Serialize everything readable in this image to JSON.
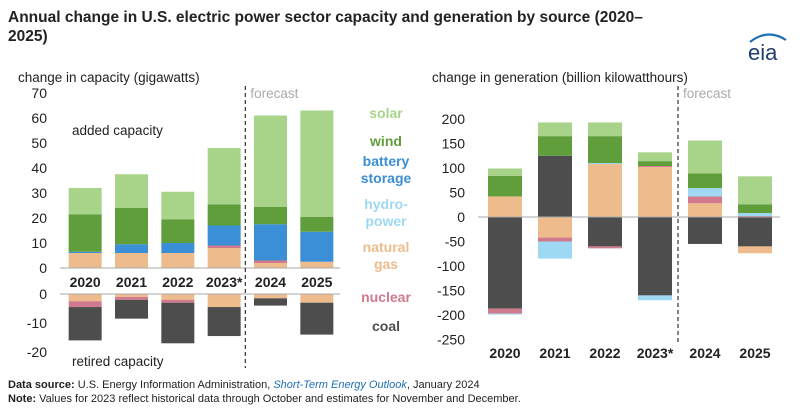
{
  "title": "Annual change in U.S. electric power sector capacity and generation by source (2020–2025)",
  "logo_text": "eia",
  "footer": {
    "source_label": "Data source:",
    "source_text": " U.S. Energy Information Administration, ",
    "source_link": "Short-Term Energy Outlook",
    "source_tail": ", January 2024",
    "note_label": "Note:",
    "note_text": " Values for 2023 reflect historical data through October and estimates for November and December."
  },
  "colors": {
    "solar": "#a8d48a",
    "wind": "#5f9e3a",
    "battery storage": "#3a8fd6",
    "hydro-power": "#9fd8f3",
    "natural gas": "#eebc8c",
    "nuclear": "#d17a8e",
    "coal": "#4d4d4d"
  },
  "legend": [
    {
      "key": "solar",
      "lines": [
        "solar"
      ]
    },
    {
      "key": "wind",
      "lines": [
        "wind"
      ]
    },
    {
      "key": "battery storage",
      "lines": [
        "battery",
        "storage"
      ]
    },
    {
      "key": "hydro-power",
      "lines": [
        "hydro-",
        "power"
      ]
    },
    {
      "key": "natural gas",
      "lines": [
        "natural",
        "gas"
      ]
    },
    {
      "key": "nuclear",
      "lines": [
        "nuclear"
      ]
    },
    {
      "key": "coal",
      "lines": [
        "coal"
      ]
    }
  ],
  "chart_data": [
    {
      "type": "bar",
      "stacked": true,
      "ylabel": "change in capacity (gigawatts)",
      "forecast_label": "forecast",
      "forecast_from": "2024",
      "annotations": [
        "added capacity",
        "retired capacity"
      ],
      "categories": [
        "2020",
        "2021",
        "2022",
        "2023*",
        "2024",
        "2025"
      ],
      "added": {
        "ylim": [
          0,
          70
        ],
        "yticks": [
          0,
          10,
          20,
          30,
          40,
          50,
          60,
          70
        ],
        "series": [
          {
            "name": "natural gas",
            "values": [
              6,
              6,
              6,
              8,
              2,
              2.5
            ]
          },
          {
            "name": "nuclear",
            "values": [
              0,
              0,
              0,
              1,
              1,
              0
            ]
          },
          {
            "name": "hydro-power",
            "values": [
              0,
              0,
              0,
              0,
              0,
              0
            ]
          },
          {
            "name": "battery storage",
            "values": [
              0.5,
              3.5,
              4,
              8,
              14.5,
              12
            ]
          },
          {
            "name": "wind",
            "values": [
              15,
              14.5,
              9.5,
              8.5,
              7,
              6
            ]
          },
          {
            "name": "solar",
            "values": [
              10.5,
              13.5,
              11,
              22.5,
              36.5,
              42.5
            ]
          }
        ]
      },
      "retired": {
        "ylim": [
          -20,
          0
        ],
        "yticks": [
          0,
          -10,
          -20
        ],
        "series": [
          {
            "name": "natural gas",
            "values": [
              -2.5,
              -1,
              -2,
              -4.5,
              -1.5,
              -3
            ]
          },
          {
            "name": "nuclear",
            "values": [
              -2,
              -1,
              -1,
              0,
              0,
              0
            ]
          },
          {
            "name": "coal",
            "values": [
              -11.5,
              -6.5,
              -14,
              -10,
              -2.5,
              -11
            ]
          }
        ]
      }
    },
    {
      "type": "bar",
      "stacked": true,
      "ylabel": "change in generation (billion kilowatthours)",
      "forecast_label": "forecast",
      "forecast_from": "2024",
      "categories": [
        "2020",
        "2021",
        "2022",
        "2023*",
        "2024",
        "2025"
      ],
      "ylim": [
        -250,
        200
      ],
      "yticks": [
        200,
        150,
        100,
        50,
        0,
        -50,
        -100,
        -150,
        -200,
        -250
      ],
      "series": [
        {
          "name": "coal",
          "values": [
            -187,
            125,
            -60,
            -160,
            -55,
            -60
          ]
        },
        {
          "name": "natural gas",
          "values": [
            42,
            -42,
            108,
            102,
            28,
            -14
          ]
        },
        {
          "name": "nuclear",
          "values": [
            -10,
            -8,
            -4,
            2,
            14,
            2
          ]
        },
        {
          "name": "hydro-power",
          "values": [
            -2,
            -35,
            2,
            -10,
            17,
            6
          ]
        },
        {
          "name": "battery storage",
          "values": [
            0,
            0,
            0,
            0,
            0,
            0
          ]
        },
        {
          "name": "wind",
          "values": [
            42,
            40,
            55,
            10,
            30,
            18
          ]
        },
        {
          "name": "solar",
          "values": [
            15,
            28,
            28,
            18,
            67,
            57
          ]
        }
      ]
    }
  ]
}
